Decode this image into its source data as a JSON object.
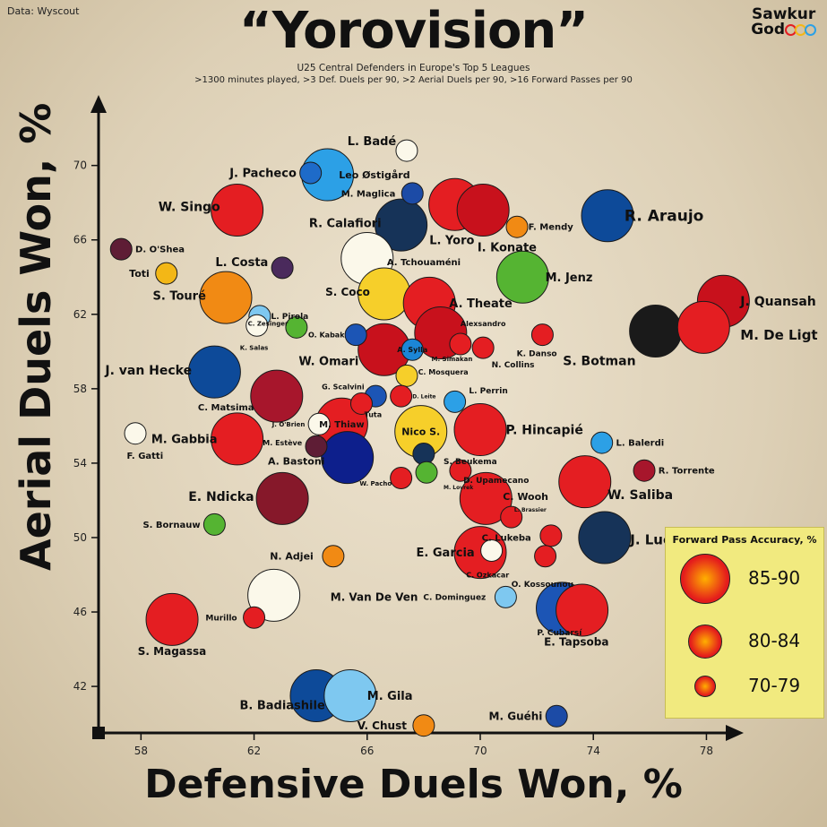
{
  "source": "Data: Wyscout",
  "title": "“Yorovision”",
  "subtitle1": "U25 Central Defenders in Europe's Top 5 Leagues",
  "subtitle2": ">1300 minutes played, >3 Def. Duels per 90, >2 Aerial Duels per 90, >16 Forward Passes per 90",
  "brand": {
    "line1": "Sawkur",
    "line2": "God"
  },
  "legend": {
    "title": "Forward Pass Accuracy, %",
    "items": [
      {
        "label": "85-90"
      },
      {
        "label": "80-84"
      },
      {
        "label": "70-79"
      }
    ]
  },
  "chart_data": {
    "type": "scatter",
    "xlabel": "Defensive Duels Won, %",
    "ylabel": "Aerial Duels Won, %",
    "xlim": [
      56.5,
      79
    ],
    "ylim": [
      39.5,
      73.5
    ],
    "xticks": [
      58,
      62,
      66,
      70,
      74,
      78
    ],
    "yticks": [
      42,
      46,
      50,
      54,
      58,
      62,
      66,
      70
    ],
    "size_legend": "Forward Pass Accuracy, %",
    "points": [
      {
        "name": "L. Badé",
        "x": 67.4,
        "y": 70.8,
        "size": 76,
        "color": "#fbf8ea",
        "lx": 65.3,
        "ly": 71.3,
        "fs": 13
      },
      {
        "name": "J. Pacheco",
        "x": 64.0,
        "y": 69.6,
        "size": 76,
        "color": "#1e6bc9",
        "lx": 63.5,
        "ly": 69.6,
        "fs": 13,
        "anchor": "end"
      },
      {
        "name": "Leo Østigård",
        "x": 64.6,
        "y": 69.5,
        "size": 88,
        "color": "#2ca0e6",
        "lx": 65.0,
        "ly": 69.5,
        "fs": 11
      },
      {
        "name": "M. Maglica",
        "x": 67.6,
        "y": 68.5,
        "size": 76,
        "color": "#1c4ba6",
        "lx": 67.0,
        "ly": 68.5,
        "fs": 10,
        "anchor": "end"
      },
      {
        "name": "W. Singo",
        "x": 61.4,
        "y": 67.6,
        "size": 88,
        "color": "#e41e22",
        "lx": 60.8,
        "ly": 67.8,
        "fs": 14,
        "anchor": "end"
      },
      {
        "name": "L. Yoro",
        "x": 69.1,
        "y": 67.9,
        "size": 88,
        "color": "#e41e22",
        "lx": 68.2,
        "ly": 66.0,
        "fs": 13
      },
      {
        "name": "I. Konate",
        "x": 70.1,
        "y": 67.6,
        "size": 88,
        "color": "#c8111c",
        "lx": 69.9,
        "ly": 65.6,
        "fs": 13
      },
      {
        "name": "F. Mendy",
        "x": 71.3,
        "y": 66.7,
        "size": 76,
        "color": "#f18a14",
        "lx": 71.7,
        "ly": 66.7,
        "fs": 10
      },
      {
        "name": "R. Araujo",
        "x": 74.5,
        "y": 67.3,
        "size": 88,
        "color": "#0d4a99",
        "lx": 75.1,
        "ly": 67.3,
        "fs": 17
      },
      {
        "name": "R. Calafiori",
        "x": 67.2,
        "y": 66.8,
        "size": 88,
        "color": "#163358",
        "lx": 66.5,
        "ly": 66.9,
        "fs": 13,
        "anchor": "end"
      },
      {
        "name": "D. O'Shea",
        "x": 57.3,
        "y": 65.5,
        "size": 76,
        "color": "#5e1d35",
        "lx": 57.8,
        "ly": 65.5,
        "fs": 10
      },
      {
        "name": "L. Costa",
        "x": 63.0,
        "y": 64.5,
        "size": 76,
        "color": "#4a2a5c",
        "lx": 62.5,
        "ly": 64.8,
        "fs": 13,
        "anchor": "end"
      },
      {
        "name": "Toti",
        "x": 58.9,
        "y": 64.2,
        "size": 76,
        "color": "#f3b716",
        "lx": 58.3,
        "ly": 64.2,
        "fs": 11,
        "anchor": "end"
      },
      {
        "name": "A. Tchouaméni",
        "x": 66.0,
        "y": 65.0,
        "size": 88,
        "color": "#fbf8ea",
        "lx": 66.7,
        "ly": 64.8,
        "fs": 10
      },
      {
        "name": "M. Jenz",
        "x": 71.5,
        "y": 64.0,
        "size": 88,
        "color": "#55b432",
        "lx": 72.3,
        "ly": 64.0,
        "fs": 13
      },
      {
        "name": "S. Touré",
        "x": 61.0,
        "y": 62.9,
        "size": 88,
        "color": "#f18a14",
        "lx": 60.3,
        "ly": 63.0,
        "fs": 13,
        "anchor": "end"
      },
      {
        "name": "S. Coco",
        "x": 66.6,
        "y": 63.1,
        "size": 88,
        "color": "#f6cf2a",
        "lx": 66.1,
        "ly": 63.2,
        "fs": 12,
        "anchor": "end"
      },
      {
        "name": "A. Theate",
        "x": 68.2,
        "y": 62.6,
        "size": 88,
        "color": "#e41e22",
        "lx": 68.9,
        "ly": 62.6,
        "fs": 13
      },
      {
        "name": "J. Quansah",
        "x": 78.6,
        "y": 62.7,
        "size": 88,
        "color": "#c8111c",
        "lx": 79.2,
        "ly": 62.7,
        "fs": 14
      },
      {
        "name": "L. Pirola",
        "x": 62.2,
        "y": 61.9,
        "size": 70,
        "color": "#7ec8f0",
        "lx": 62.6,
        "ly": 61.9,
        "fs": 9
      },
      {
        "name": "C. Zesinger",
        "x": 63.5,
        "y": 61.3,
        "size": 70,
        "color": "#55b432",
        "lx": 63.2,
        "ly": 61.5,
        "fs": 7,
        "anchor": "end"
      },
      {
        "name": "K. Salas",
        "x": 62.1,
        "y": 61.4,
        "size": 70,
        "color": "#fbf8ea",
        "lx": 62.0,
        "ly": 60.2,
        "fs": 7,
        "anchor": "middle"
      },
      {
        "name": "Alexsandro",
        "x": 68.6,
        "y": 61.0,
        "size": 88,
        "color": "#c8111c",
        "lx": 69.3,
        "ly": 61.5,
        "fs": 8
      },
      {
        "name": "O. Kabak",
        "x": 65.6,
        "y": 60.9,
        "size": 76,
        "color": "#1c55b5",
        "lx": 65.2,
        "ly": 60.9,
        "fs": 8,
        "anchor": "end"
      },
      {
        "name": "K. Danso",
        "x": 72.2,
        "y": 60.9,
        "size": 76,
        "color": "#e41e22",
        "lx": 72.0,
        "ly": 59.9,
        "fs": 9,
        "anchor": "middle"
      },
      {
        "name": "S. Botman",
        "x": 76.2,
        "y": 61.1,
        "size": 88,
        "color": "#1a1a1a",
        "lx": 75.5,
        "ly": 59.5,
        "fs": 14,
        "anchor": "end"
      },
      {
        "name": "M. De Ligt",
        "x": 77.9,
        "y": 61.3,
        "size": 88,
        "color": "#e41e22",
        "lx": 79.2,
        "ly": 60.9,
        "fs": 15
      },
      {
        "name": "J. van Hecke",
        "x": 60.6,
        "y": 58.9,
        "size": 88,
        "color": "#0d4a99",
        "lx": 59.8,
        "ly": 59.0,
        "fs": 14,
        "anchor": "end"
      },
      {
        "name": "W. Omari",
        "x": 66.6,
        "y": 60.1,
        "size": 88,
        "color": "#c8111c",
        "lx": 65.7,
        "ly": 59.5,
        "fs": 13,
        "anchor": "end"
      },
      {
        "name": "A. Sylla",
        "x": 67.6,
        "y": 60.1,
        "size": 76,
        "color": "#1c86d6",
        "lx": 67.6,
        "ly": 60.1,
        "fs": 8,
        "anchor": "middle",
        "inside": true
      },
      {
        "name": "M. Simakan",
        "x": 69.3,
        "y": 60.4,
        "size": 76,
        "color": "#e41e22",
        "lx": 69.0,
        "ly": 59.6,
        "fs": 7,
        "anchor": "middle"
      },
      {
        "name": "N. Collins",
        "x": 70.1,
        "y": 60.2,
        "size": 76,
        "color": "#e41e22",
        "lx": 70.4,
        "ly": 59.3,
        "fs": 9
      },
      {
        "name": "C. Mosquera",
        "x": 67.4,
        "y": 58.7,
        "size": 70,
        "color": "#f6cf2a",
        "lx": 67.8,
        "ly": 58.9,
        "fs": 8
      },
      {
        "name": "C. Matsima",
        "x": 62.8,
        "y": 57.6,
        "size": 88,
        "color": "#a7162c",
        "lx": 62.0,
        "ly": 57.0,
        "fs": 10,
        "anchor": "end"
      },
      {
        "name": "G. Scalvini",
        "x": 66.3,
        "y": 57.6,
        "size": 70,
        "color": "#1c55b5",
        "lx": 65.9,
        "ly": 58.1,
        "fs": 8,
        "anchor": "end"
      },
      {
        "name": "D. Leite",
        "x": 67.2,
        "y": 57.6,
        "size": 70,
        "color": "#e41e22",
        "lx": 67.6,
        "ly": 57.6,
        "fs": 6
      },
      {
        "name": "L. Perrin",
        "x": 69.1,
        "y": 57.3,
        "size": 76,
        "color": "#2ca0e6",
        "lx": 69.6,
        "ly": 57.9,
        "fs": 9
      },
      {
        "name": "Tuta",
        "x": 65.8,
        "y": 57.2,
        "size": 70,
        "color": "#e41e22",
        "lx": 65.9,
        "ly": 56.6,
        "fs": 8
      },
      {
        "name": "M. Thiaw",
        "x": 65.1,
        "y": 56.1,
        "size": 88,
        "color": "#e41e22",
        "lx": 65.1,
        "ly": 56.1,
        "fs": 10,
        "anchor": "middle",
        "inside": true
      },
      {
        "name": "J. O'Brien",
        "x": 64.3,
        "y": 56.1,
        "size": 70,
        "color": "#fbf8ea",
        "lx": 63.8,
        "ly": 56.1,
        "fs": 7,
        "anchor": "end"
      },
      {
        "name": "Nico S.",
        "x": 67.9,
        "y": 55.7,
        "size": 88,
        "color": "#f6cf2a",
        "lx": 67.9,
        "ly": 55.7,
        "fs": 11,
        "anchor": "middle",
        "inside": true
      },
      {
        "name": "P. Hincapié",
        "x": 70.0,
        "y": 55.8,
        "size": 88,
        "color": "#e41e22",
        "lx": 70.9,
        "ly": 55.8,
        "fs": 14
      },
      {
        "name": "M. Gabbia",
        "x": 61.4,
        "y": 55.3,
        "size": 88,
        "color": "#e41e22",
        "lx": 60.7,
        "ly": 55.3,
        "fs": 13,
        "anchor": "end"
      },
      {
        "name": "F. Gatti",
        "x": 57.8,
        "y": 55.6,
        "size": 70,
        "color": "#fbf8ea",
        "lx": 57.5,
        "ly": 54.4,
        "fs": 10
      },
      {
        "name": "M. Estève",
        "x": 64.2,
        "y": 54.9,
        "size": 70,
        "color": "#5e1d35",
        "lx": 63.7,
        "ly": 55.1,
        "fs": 8,
        "anchor": "end"
      },
      {
        "name": "L. Balerdi",
        "x": 74.3,
        "y": 55.1,
        "size": 70,
        "color": "#2ca0e6",
        "lx": 74.8,
        "ly": 55.1,
        "fs": 10
      },
      {
        "name": "A. Bastoni",
        "x": 65.3,
        "y": 54.3,
        "size": 88,
        "color": "#0d1f8c",
        "lx": 64.5,
        "ly": 54.1,
        "fs": 11,
        "anchor": "end"
      },
      {
        "name": "S. Beukema",
        "x": 68.0,
        "y": 54.5,
        "size": 70,
        "color": "#163358",
        "lx": 68.7,
        "ly": 54.1,
        "fs": 9
      },
      {
        "name": "D. Upamecano",
        "x": 69.3,
        "y": 53.6,
        "size": 70,
        "color": "#e41e22",
        "lx": 69.4,
        "ly": 53.1,
        "fs": 9
      },
      {
        "name": "R. Torrente",
        "x": 75.8,
        "y": 53.6,
        "size": 70,
        "color": "#a7162c",
        "lx": 76.3,
        "ly": 53.6,
        "fs": 10
      },
      {
        "name": "M. Lovrek",
        "x": 68.1,
        "y": 53.5,
        "size": 70,
        "color": "#55b432",
        "lx": 68.7,
        "ly": 52.7,
        "fs": 6
      },
      {
        "name": "W. Pacho",
        "x": 67.2,
        "y": 53.2,
        "size": 70,
        "color": "#e41e22",
        "lx": 66.3,
        "ly": 52.9,
        "fs": 7,
        "anchor": "middle"
      },
      {
        "name": "E. Ndicka",
        "x": 63.0,
        "y": 52.1,
        "size": 88,
        "color": "#86182a",
        "lx": 62.0,
        "ly": 52.2,
        "fs": 14,
        "anchor": "end"
      },
      {
        "name": "C. Wooh",
        "x": 70.2,
        "y": 52.1,
        "size": 88,
        "color": "#e41e22",
        "lx": 70.8,
        "ly": 52.2,
        "fs": 11
      },
      {
        "name": "W. Saliba",
        "x": 73.7,
        "y": 53.0,
        "size": 88,
        "color": "#e41e22",
        "lx": 74.5,
        "ly": 52.3,
        "fs": 14
      },
      {
        "name": "S. Bornauw",
        "x": 60.6,
        "y": 50.7,
        "size": 70,
        "color": "#55b432",
        "lx": 60.1,
        "ly": 50.7,
        "fs": 10,
        "anchor": "end"
      },
      {
        "name": "L. Brassier",
        "x": 71.1,
        "y": 51.1,
        "size": 70,
        "color": "#e41e22",
        "lx": 71.2,
        "ly": 51.5,
        "fs": 6
      },
      {
        "name": "J. Lucumí",
        "x": 74.4,
        "y": 50.0,
        "size": 88,
        "color": "#163358",
        "lx": 75.3,
        "ly": 49.9,
        "fs": 15
      },
      {
        "name": "C. Lukeba",
        "x": 72.5,
        "y": 50.1,
        "size": 76,
        "color": "#e41e22",
        "lx": 71.8,
        "ly": 50.0,
        "fs": 10,
        "anchor": "end"
      },
      {
        "name": "E. Garcia",
        "x": 70.0,
        "y": 49.2,
        "size": 88,
        "color": "#e41e22",
        "lx": 69.8,
        "ly": 49.2,
        "fs": 13,
        "anchor": "end"
      },
      {
        "name": "C. Ozkacar",
        "x": 70.4,
        "y": 49.3,
        "size": 70,
        "color": "#fbf8ea",
        "lx": 69.5,
        "ly": 48.0,
        "fs": 8,
        "anchor": "start"
      },
      {
        "name": "O. Kossounou",
        "x": 72.3,
        "y": 49.0,
        "size": 76,
        "color": "#e41e22",
        "lx": 71.1,
        "ly": 47.5,
        "fs": 9
      },
      {
        "name": "N. Adjei",
        "x": 64.8,
        "y": 49.0,
        "size": 76,
        "color": "#f18a14",
        "lx": 64.1,
        "ly": 49.0,
        "fs": 11,
        "anchor": "end"
      },
      {
        "name": "M. Van De Ven",
        "x": 62.7,
        "y": 46.9,
        "size": 88,
        "color": "#fbf8ea",
        "lx": 64.7,
        "ly": 46.8,
        "fs": 12
      },
      {
        "name": "C. Dominguez",
        "x": 70.9,
        "y": 46.8,
        "size": 70,
        "color": "#7ec8f0",
        "lx": 70.2,
        "ly": 46.8,
        "fs": 9,
        "anchor": "end"
      },
      {
        "name": "S. Magassa",
        "x": 59.1,
        "y": 45.6,
        "size": 88,
        "color": "#e41e22",
        "lx": 59.1,
        "ly": 43.9,
        "fs": 12,
        "anchor": "middle"
      },
      {
        "name": "Murillo",
        "x": 62.0,
        "y": 45.7,
        "size": 70,
        "color": "#e41e22",
        "lx": 61.4,
        "ly": 45.7,
        "fs": 9,
        "anchor": "end"
      },
      {
        "name": "P. Cubarsí",
        "x": 72.9,
        "y": 46.2,
        "size": 88,
        "color": "#1c55b5",
        "lx": 72.8,
        "ly": 44.9,
        "fs": 9,
        "anchor": "middle"
      },
      {
        "name": "E. Tapsoba",
        "x": 73.6,
        "y": 46.1,
        "size": 88,
        "color": "#e41e22",
        "lx": 73.4,
        "ly": 44.4,
        "fs": 12,
        "anchor": "middle"
      },
      {
        "name": "B. Badiashile",
        "x": 64.2,
        "y": 41.5,
        "size": 88,
        "color": "#0d4a99",
        "lx": 63.0,
        "ly": 41.0,
        "fs": 13,
        "anchor": "middle"
      },
      {
        "name": "M. Gila",
        "x": 65.4,
        "y": 41.5,
        "size": 88,
        "color": "#7ec8f0",
        "lx": 66.0,
        "ly": 41.5,
        "fs": 13
      },
      {
        "name": "V. Chust",
        "x": 68.0,
        "y": 39.9,
        "size": 70,
        "color": "#f18a14",
        "lx": 67.4,
        "ly": 39.9,
        "fs": 12,
        "anchor": "end"
      },
      {
        "name": "M. Guéhi",
        "x": 72.7,
        "y": 40.4,
        "size": 70,
        "color": "#1c4ba6",
        "lx": 72.2,
        "ly": 40.4,
        "fs": 12,
        "anchor": "end"
      }
    ]
  }
}
